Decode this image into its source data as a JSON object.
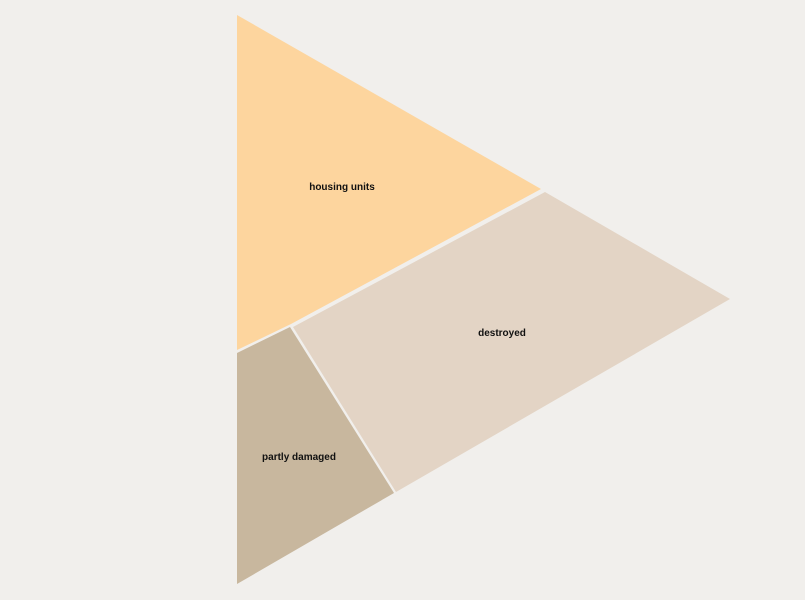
{
  "diagram": {
    "regions": [
      {
        "id": "housing-units",
        "label": "housing units",
        "color": "#fdd59e"
      },
      {
        "id": "destroyed",
        "label": "destroyed",
        "color": "#e3d4c5"
      },
      {
        "id": "partly-damaged",
        "label": "partly damaged",
        "color": "#c8b79e"
      }
    ],
    "background_color": "#f1efec",
    "separator_color": "#f1efec"
  }
}
